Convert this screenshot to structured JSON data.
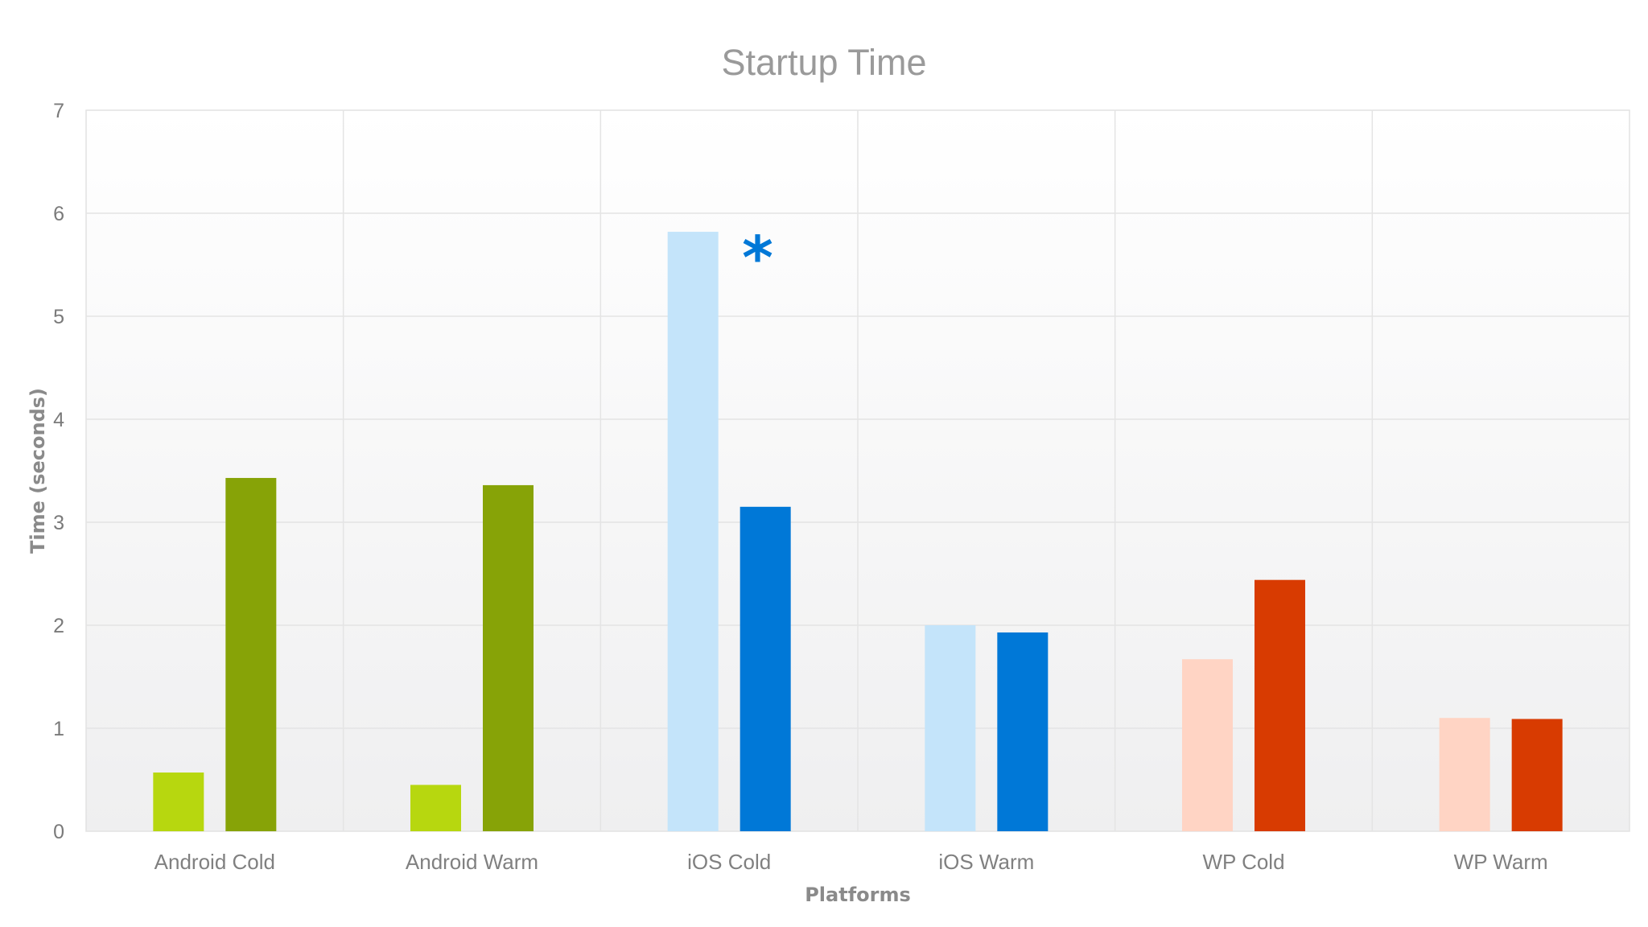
{
  "chart_data": {
    "type": "bar",
    "title": "Startup Time",
    "xlabel": "Platforms",
    "ylabel": "Time (seconds)",
    "ylim": [
      0,
      7
    ],
    "yticks": [
      "0",
      "1",
      "2",
      "3",
      "4",
      "5",
      "6",
      "7"
    ],
    "grid": true,
    "categories": [
      "Android Cold",
      "Android Warm",
      "iOS Cold",
      "iOS Warm",
      "WP Cold",
      "WP Warm"
    ],
    "series": [
      {
        "values": [
          0.57,
          0.45,
          5.82,
          2.0,
          1.67,
          1.1
        ]
      },
      {
        "values": [
          3.43,
          3.36,
          3.15,
          1.93,
          2.44,
          1.09
        ]
      }
    ],
    "bar_colors": [
      [
        "#b7d70f",
        "#87a307"
      ],
      [
        "#b7d70f",
        "#87a307"
      ],
      [
        "#c4e4fa",
        "#0078d7"
      ],
      [
        "#c4e4fa",
        "#0078d7"
      ],
      [
        "#ffd4c4",
        "#d83b01"
      ],
      [
        "#ffd4c4",
        "#d83b01"
      ]
    ],
    "annotation": {
      "text": "*",
      "category": "iOS Cold",
      "color": "#0078d7"
    }
  }
}
